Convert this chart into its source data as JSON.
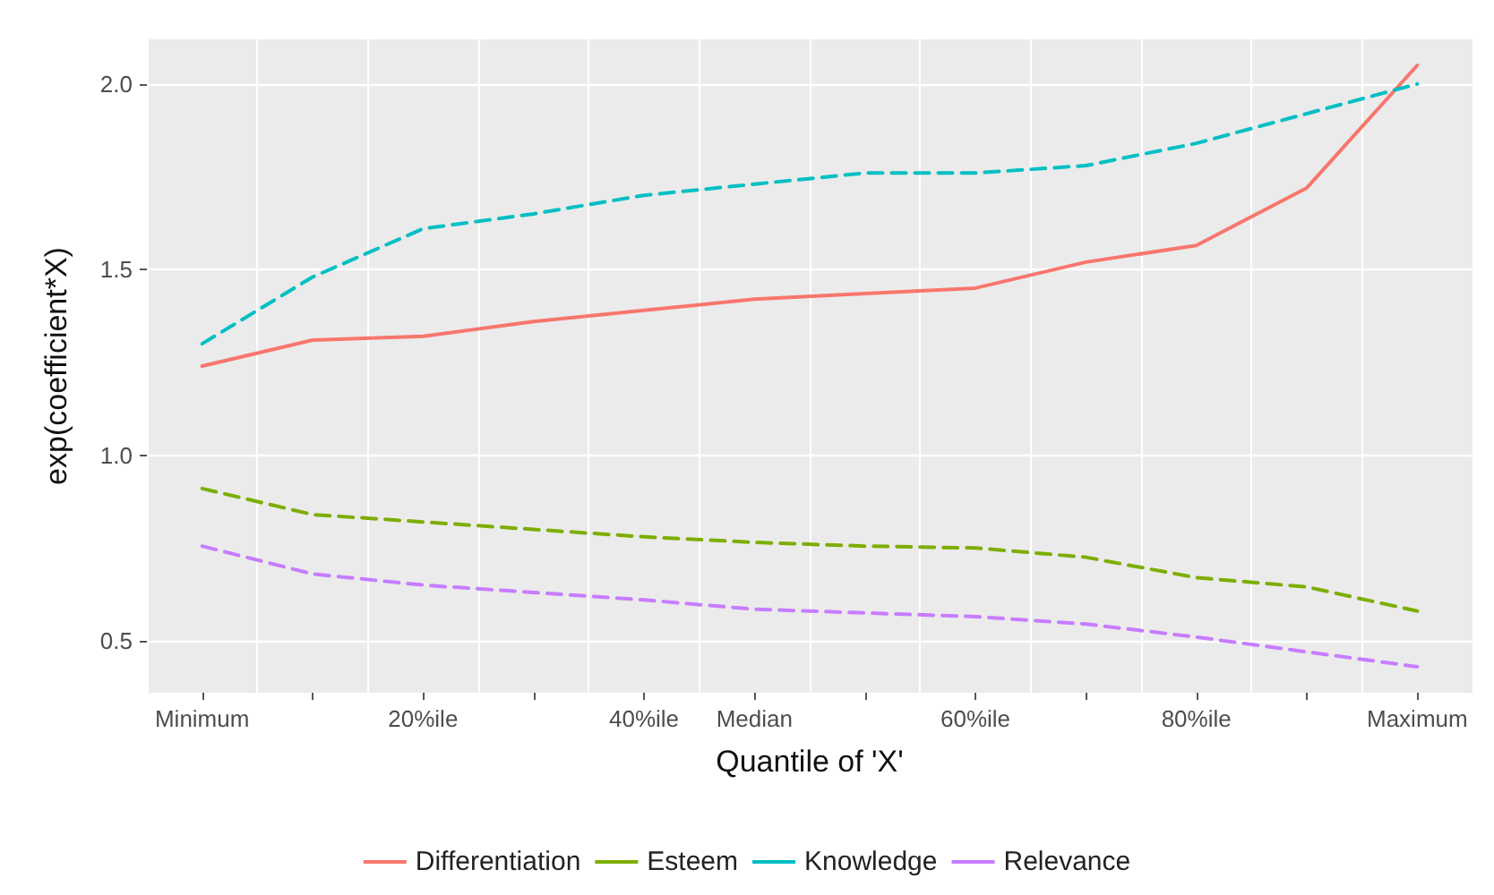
{
  "chart_data": {
    "type": "line",
    "xlabel": "Quantile of 'X'",
    "ylabel": "exp(coefficient*X)",
    "categories": [
      "Minimum",
      null,
      "20%ile",
      null,
      "40%ile",
      "Median",
      null,
      "60%ile",
      null,
      "80%ile",
      null,
      "Maximum"
    ],
    "series": [
      {
        "name": "Differentiation",
        "color": "#f8766d",
        "line_style": "solid",
        "values": [
          1.24,
          1.31,
          1.32,
          1.36,
          1.39,
          1.42,
          1.435,
          1.45,
          1.52,
          1.565,
          1.72,
          2.05
        ]
      },
      {
        "name": "Esteem",
        "color": "#7cae00",
        "line_style": "dashed",
        "values": [
          0.91,
          0.84,
          0.82,
          0.8,
          0.78,
          0.765,
          0.755,
          0.75,
          0.725,
          0.67,
          0.645,
          0.58
        ]
      },
      {
        "name": "Knowledge",
        "color": "#00bfc4",
        "line_style": "dashed",
        "values": [
          1.3,
          1.48,
          1.61,
          1.65,
          1.7,
          1.73,
          1.76,
          1.76,
          1.78,
          1.84,
          1.92,
          2.0
        ]
      },
      {
        "name": "Relevance",
        "color": "#c77cff",
        "line_style": "dashed",
        "values": [
          0.755,
          0.68,
          0.65,
          0.63,
          0.61,
          0.585,
          0.575,
          0.565,
          0.545,
          0.51,
          0.47,
          0.43
        ]
      }
    ],
    "ylim": [
      0.36,
      2.12
    ],
    "yticks": [
      {
        "value": 0.5,
        "label": "0.5"
      },
      {
        "value": 1.0,
        "label": "1.0"
      },
      {
        "value": 1.5,
        "label": "1.5"
      },
      {
        "value": 2.0,
        "label": "2.0"
      }
    ],
    "grid": true,
    "legend": "bottom",
    "marker": "none"
  }
}
